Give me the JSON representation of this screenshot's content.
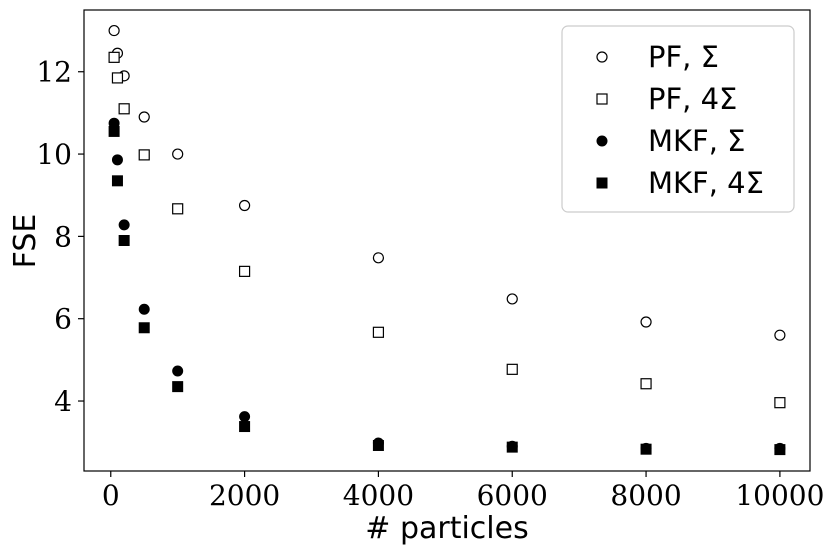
{
  "chart_data": {
    "type": "scatter",
    "title": "",
    "xlabel": "# particles",
    "ylabel": "FSE",
    "xlim": [
      -400,
      10450
    ],
    "ylim": [
      2.3,
      13.5
    ],
    "xticks": [
      0,
      2000,
      4000,
      6000,
      8000,
      10000
    ],
    "xtick_labels": [
      "0",
      "2000",
      "4000",
      "6000",
      "8000",
      "10000"
    ],
    "yticks": [
      4,
      6,
      8,
      10,
      12
    ],
    "ytick_labels": [
      "4",
      "6",
      "8",
      "10",
      "12"
    ],
    "grid": false,
    "legend_position": "top-right",
    "x": [
      50,
      100,
      200,
      500,
      1000,
      2000,
      4000,
      6000,
      8000,
      10000
    ],
    "series": [
      {
        "name": "PF, Σ",
        "marker": "circle-open",
        "color": "#000000",
        "values": [
          13.0,
          12.45,
          11.9,
          10.9,
          10.0,
          8.75,
          7.48,
          6.48,
          5.92,
          5.6
        ]
      },
      {
        "name": "PF, 4Σ",
        "marker": "square-open",
        "color": "#000000",
        "values": [
          12.35,
          11.85,
          11.1,
          9.98,
          8.67,
          7.15,
          5.67,
          4.77,
          4.42,
          3.96
        ]
      },
      {
        "name": "MKF, Σ",
        "marker": "circle-filled",
        "color": "#000000",
        "values": [
          10.75,
          9.86,
          8.28,
          6.23,
          4.73,
          3.62,
          2.98,
          2.9,
          2.85,
          2.85
        ]
      },
      {
        "name": "MKF, 4Σ",
        "marker": "square-filled",
        "color": "#000000",
        "values": [
          10.55,
          9.35,
          7.9,
          5.78,
          4.35,
          3.38,
          2.92,
          2.88,
          2.83,
          2.82
        ]
      }
    ]
  }
}
